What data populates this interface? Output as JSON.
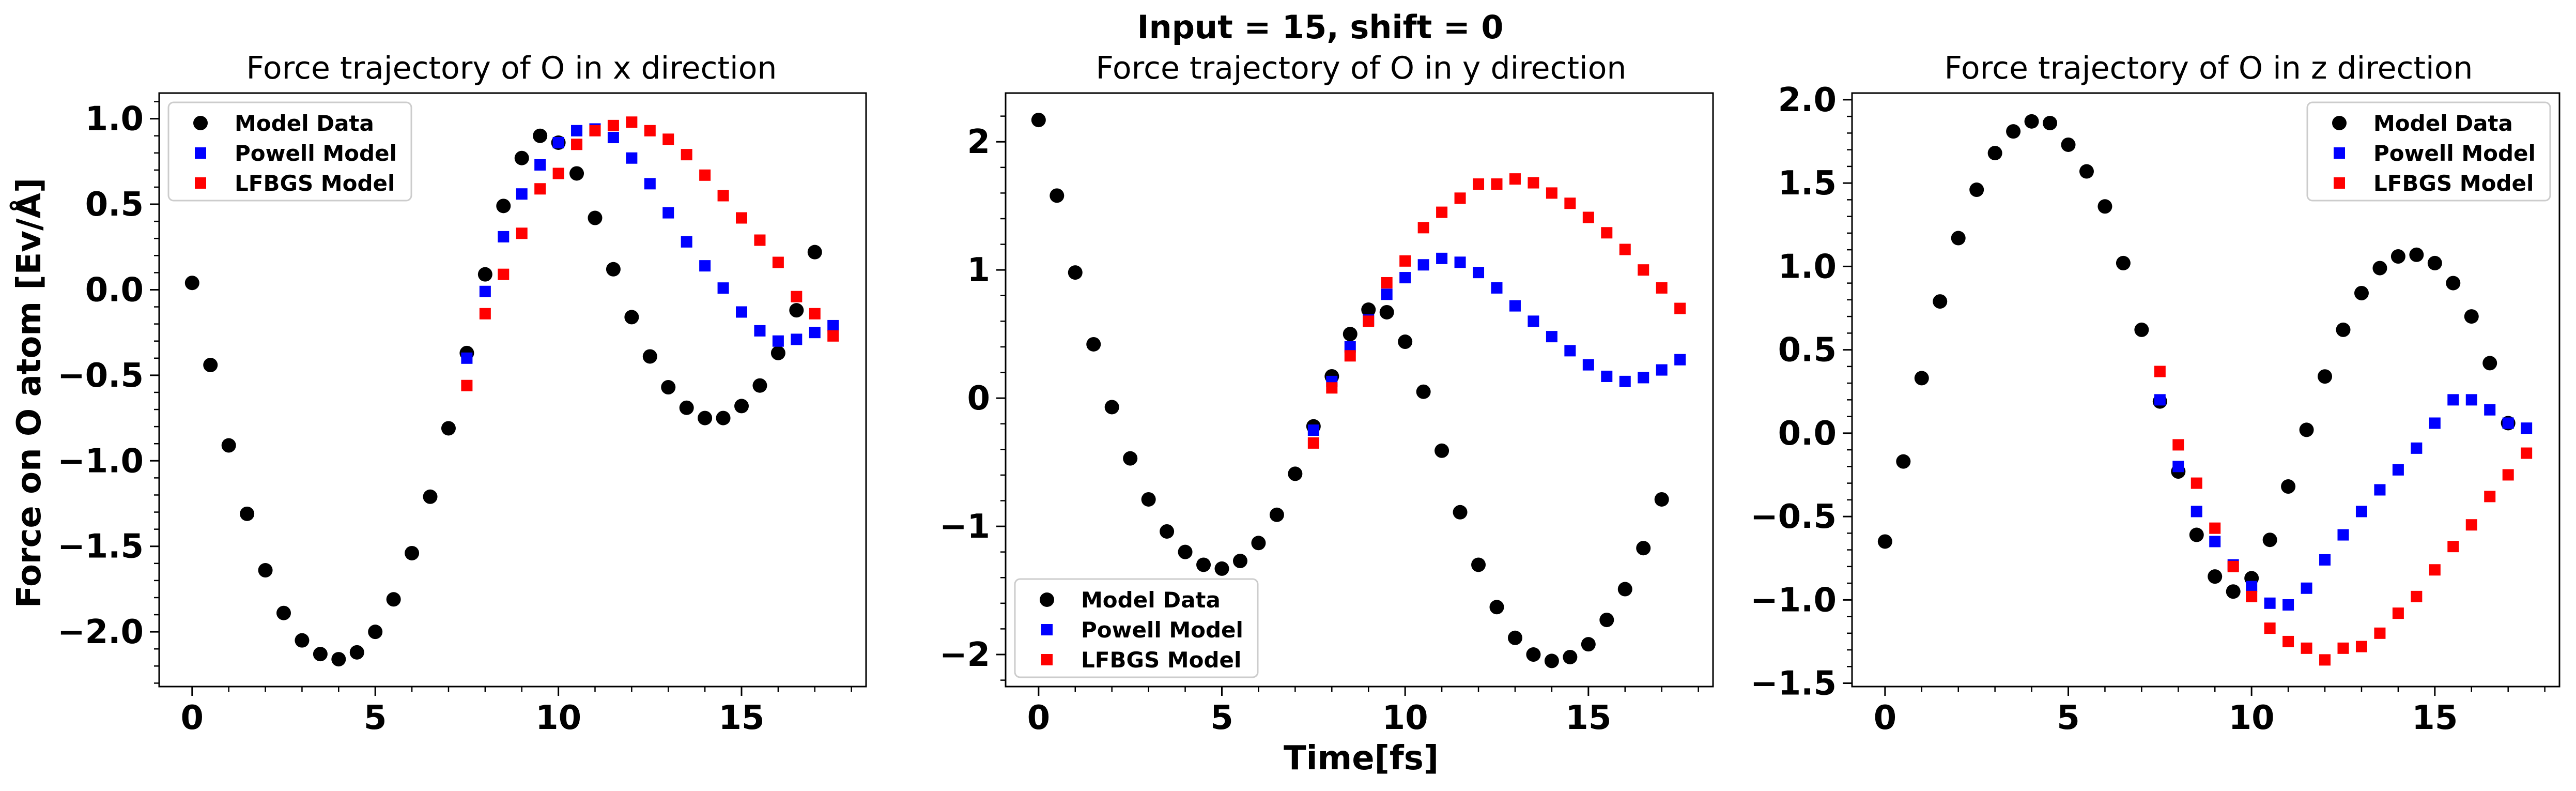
{
  "figure": {
    "suptitle": "Input = 15, shift = 0"
  },
  "chart_data": [
    {
      "type": "scatter",
      "title": "Force trajectory of O in x direction",
      "xlabel": "",
      "ylabel": "Force on O atom [Ev/Å]",
      "xlim": [
        -0.9,
        18.4
      ],
      "ylim": [
        -2.32,
        1.15
      ],
      "xticks": [
        0,
        5,
        10,
        15
      ],
      "xtick_labels": [
        "0",
        "5",
        "10",
        "15"
      ],
      "yticks": [
        -2.0,
        -1.5,
        -1.0,
        -0.5,
        0.0,
        0.5,
        1.0
      ],
      "ytick_labels": [
        "−2.0",
        "−1.5",
        "−1.0",
        "−0.5",
        "0.0",
        "0.5",
        "1.0"
      ],
      "legend": "top-left",
      "series": [
        {
          "name": "Model Data",
          "color": "#000000",
          "marker": "circle",
          "x": [
            0,
            0.5,
            1,
            1.5,
            2,
            2.5,
            3,
            3.5,
            4,
            4.5,
            5,
            5.5,
            6,
            6.5,
            7,
            7.5,
            8,
            8.5,
            9,
            9.5,
            10,
            10.5,
            11,
            11.5,
            12,
            12.5,
            13,
            13.5,
            14,
            14.5,
            15,
            15.5,
            16,
            16.5,
            17
          ],
          "y": [
            0.04,
            -0.44,
            -0.91,
            -1.31,
            -1.64,
            -1.89,
            -2.05,
            -2.13,
            -2.16,
            -2.12,
            -2.0,
            -1.81,
            -1.54,
            -1.21,
            -0.81,
            -0.37,
            0.09,
            0.49,
            0.77,
            0.9,
            0.86,
            0.68,
            0.42,
            0.12,
            -0.16,
            -0.39,
            -0.57,
            -0.69,
            -0.75,
            -0.75,
            -0.68,
            -0.56,
            -0.37,
            -0.12,
            0.22
          ]
        },
        {
          "name": "Powell Model",
          "color": "#0000ff",
          "marker": "square",
          "x": [
            7.5,
            8,
            8.5,
            9,
            9.5,
            10,
            10.5,
            11,
            11.5,
            12,
            12.5,
            13,
            13.5,
            14,
            14.5,
            15,
            15.5,
            16,
            16.5,
            17,
            17.5
          ],
          "y": [
            -0.4,
            -0.01,
            0.31,
            0.56,
            0.73,
            0.86,
            0.93,
            0.94,
            0.89,
            0.77,
            0.62,
            0.45,
            0.28,
            0.14,
            0.01,
            -0.13,
            -0.24,
            -0.3,
            -0.29,
            -0.25,
            -0.21
          ]
        },
        {
          "name": "LFBGS Model",
          "color": "#ff0000",
          "marker": "square",
          "x": [
            7.5,
            8,
            8.5,
            9,
            9.5,
            10,
            10.5,
            11,
            11.5,
            12,
            12.5,
            13,
            13.5,
            14,
            14.5,
            15,
            15.5,
            16,
            16.5,
            17,
            17.5
          ],
          "y": [
            -0.56,
            -0.14,
            0.09,
            0.33,
            0.59,
            0.68,
            0.85,
            0.93,
            0.96,
            0.98,
            0.93,
            0.88,
            0.79,
            0.67,
            0.55,
            0.42,
            0.29,
            0.16,
            -0.04,
            -0.14,
            -0.27
          ]
        }
      ]
    },
    {
      "type": "scatter",
      "title": "Force trajectory of O in y direction",
      "xlabel": "Time[fs]",
      "ylabel": "",
      "xlim": [
        -0.9,
        18.4
      ],
      "ylim": [
        -2.25,
        2.38
      ],
      "xticks": [
        0,
        5,
        10,
        15
      ],
      "xtick_labels": [
        "0",
        "5",
        "10",
        "15"
      ],
      "yticks": [
        -2,
        -1,
        0,
        1,
        2
      ],
      "ytick_labels": [
        "−2",
        "−1",
        "0",
        "1",
        "2"
      ],
      "legend": "bottom-left",
      "series": [
        {
          "name": "Model Data",
          "color": "#000000",
          "marker": "circle",
          "x": [
            0,
            0.5,
            1,
            1.5,
            2,
            2.5,
            3,
            3.5,
            4,
            4.5,
            5,
            5.5,
            6,
            6.5,
            7,
            7.5,
            8,
            8.5,
            9,
            9.5,
            10,
            10.5,
            11,
            11.5,
            12,
            12.5,
            13,
            13.5,
            14,
            14.5,
            15,
            15.5,
            16,
            16.5,
            17
          ],
          "y": [
            2.17,
            1.58,
            0.98,
            0.42,
            -0.07,
            -0.47,
            -0.79,
            -1.04,
            -1.2,
            -1.3,
            -1.33,
            -1.27,
            -1.13,
            -0.91,
            -0.59,
            -0.22,
            0.17,
            0.5,
            0.69,
            0.67,
            0.44,
            0.05,
            -0.41,
            -0.89,
            -1.3,
            -1.63,
            -1.87,
            -2.0,
            -2.05,
            -2.02,
            -1.92,
            -1.73,
            -1.49,
            -1.17,
            -0.79
          ]
        },
        {
          "name": "Powell Model",
          "color": "#0000ff",
          "marker": "square",
          "x": [
            7.5,
            8,
            8.5,
            9,
            9.5,
            10,
            10.5,
            11,
            11.5,
            12,
            12.5,
            13,
            13.5,
            14,
            14.5,
            15,
            15.5,
            16,
            16.5,
            17,
            17.5
          ],
          "y": [
            -0.25,
            0.13,
            0.4,
            0.61,
            0.81,
            0.94,
            1.04,
            1.09,
            1.06,
            0.98,
            0.86,
            0.72,
            0.6,
            0.48,
            0.37,
            0.26,
            0.17,
            0.13,
            0.16,
            0.22,
            0.3
          ]
        },
        {
          "name": "LFBGS Model",
          "color": "#ff0000",
          "marker": "square",
          "x": [
            7.5,
            8,
            8.5,
            9,
            9.5,
            10,
            10.5,
            11,
            11.5,
            12,
            12.5,
            13,
            13.5,
            14,
            14.5,
            15,
            15.5,
            16,
            16.5,
            17,
            17.5
          ],
          "y": [
            -0.35,
            0.08,
            0.33,
            0.6,
            0.9,
            1.07,
            1.33,
            1.45,
            1.56,
            1.67,
            1.67,
            1.71,
            1.68,
            1.6,
            1.52,
            1.41,
            1.29,
            1.16,
            1.0,
            0.86,
            0.7
          ]
        }
      ]
    },
    {
      "type": "scatter",
      "title": "Force trajectory of O in z direction",
      "xlabel": "",
      "ylabel": "",
      "xlim": [
        -0.9,
        18.4
      ],
      "ylim": [
        -1.52,
        2.04
      ],
      "xticks": [
        0,
        5,
        10,
        15
      ],
      "xtick_labels": [
        "0",
        "5",
        "10",
        "15"
      ],
      "yticks": [
        -1.5,
        -1.0,
        -0.5,
        0.0,
        0.5,
        1.0,
        1.5,
        2.0
      ],
      "ytick_labels": [
        "−1.5",
        "−1.0",
        "−0.5",
        "0.0",
        "0.5",
        "1.0",
        "1.5",
        "2.0"
      ],
      "legend": "top-right",
      "series": [
        {
          "name": "Model Data",
          "color": "#000000",
          "marker": "circle",
          "x": [
            0,
            0.5,
            1,
            1.5,
            2,
            2.5,
            3,
            3.5,
            4,
            4.5,
            5,
            5.5,
            6,
            6.5,
            7,
            7.5,
            8,
            8.5,
            9,
            9.5,
            10,
            10.5,
            11,
            11.5,
            12,
            12.5,
            13,
            13.5,
            14,
            14.5,
            15,
            15.5,
            16,
            16.5,
            17
          ],
          "y": [
            -0.65,
            -0.17,
            0.33,
            0.79,
            1.17,
            1.46,
            1.68,
            1.81,
            1.87,
            1.86,
            1.73,
            1.57,
            1.36,
            1.02,
            0.62,
            0.19,
            -0.23,
            -0.61,
            -0.86,
            -0.95,
            -0.87,
            -0.64,
            -0.32,
            0.02,
            0.34,
            0.62,
            0.84,
            0.99,
            1.06,
            1.07,
            1.02,
            0.9,
            0.7,
            0.42,
            0.06
          ]
        },
        {
          "name": "Powell Model",
          "color": "#0000ff",
          "marker": "square",
          "x": [
            7.5,
            8,
            8.5,
            9,
            9.5,
            10,
            10.5,
            11,
            11.5,
            12,
            12.5,
            13,
            13.5,
            14,
            14.5,
            15,
            15.5,
            16,
            16.5,
            17,
            17.5
          ],
          "y": [
            0.2,
            -0.2,
            -0.47,
            -0.65,
            -0.79,
            -0.92,
            -1.02,
            -1.03,
            -0.93,
            -0.76,
            -0.61,
            -0.47,
            -0.34,
            -0.22,
            -0.09,
            0.06,
            0.2,
            0.2,
            0.14,
            0.06,
            0.03
          ]
        },
        {
          "name": "LFBGS Model",
          "color": "#ff0000",
          "marker": "square",
          "x": [
            7.5,
            8,
            8.5,
            9,
            9.5,
            10,
            10.5,
            11,
            11.5,
            12,
            12.5,
            13,
            13.5,
            14,
            14.5,
            15,
            15.5,
            16,
            16.5,
            17,
            17.5
          ],
          "y": [
            0.37,
            -0.07,
            -0.3,
            -0.57,
            -0.8,
            -0.98,
            -1.17,
            -1.25,
            -1.29,
            -1.36,
            -1.29,
            -1.28,
            -1.2,
            -1.08,
            -0.98,
            -0.82,
            -0.68,
            -0.55,
            -0.38,
            -0.25,
            -0.12
          ]
        }
      ]
    }
  ]
}
